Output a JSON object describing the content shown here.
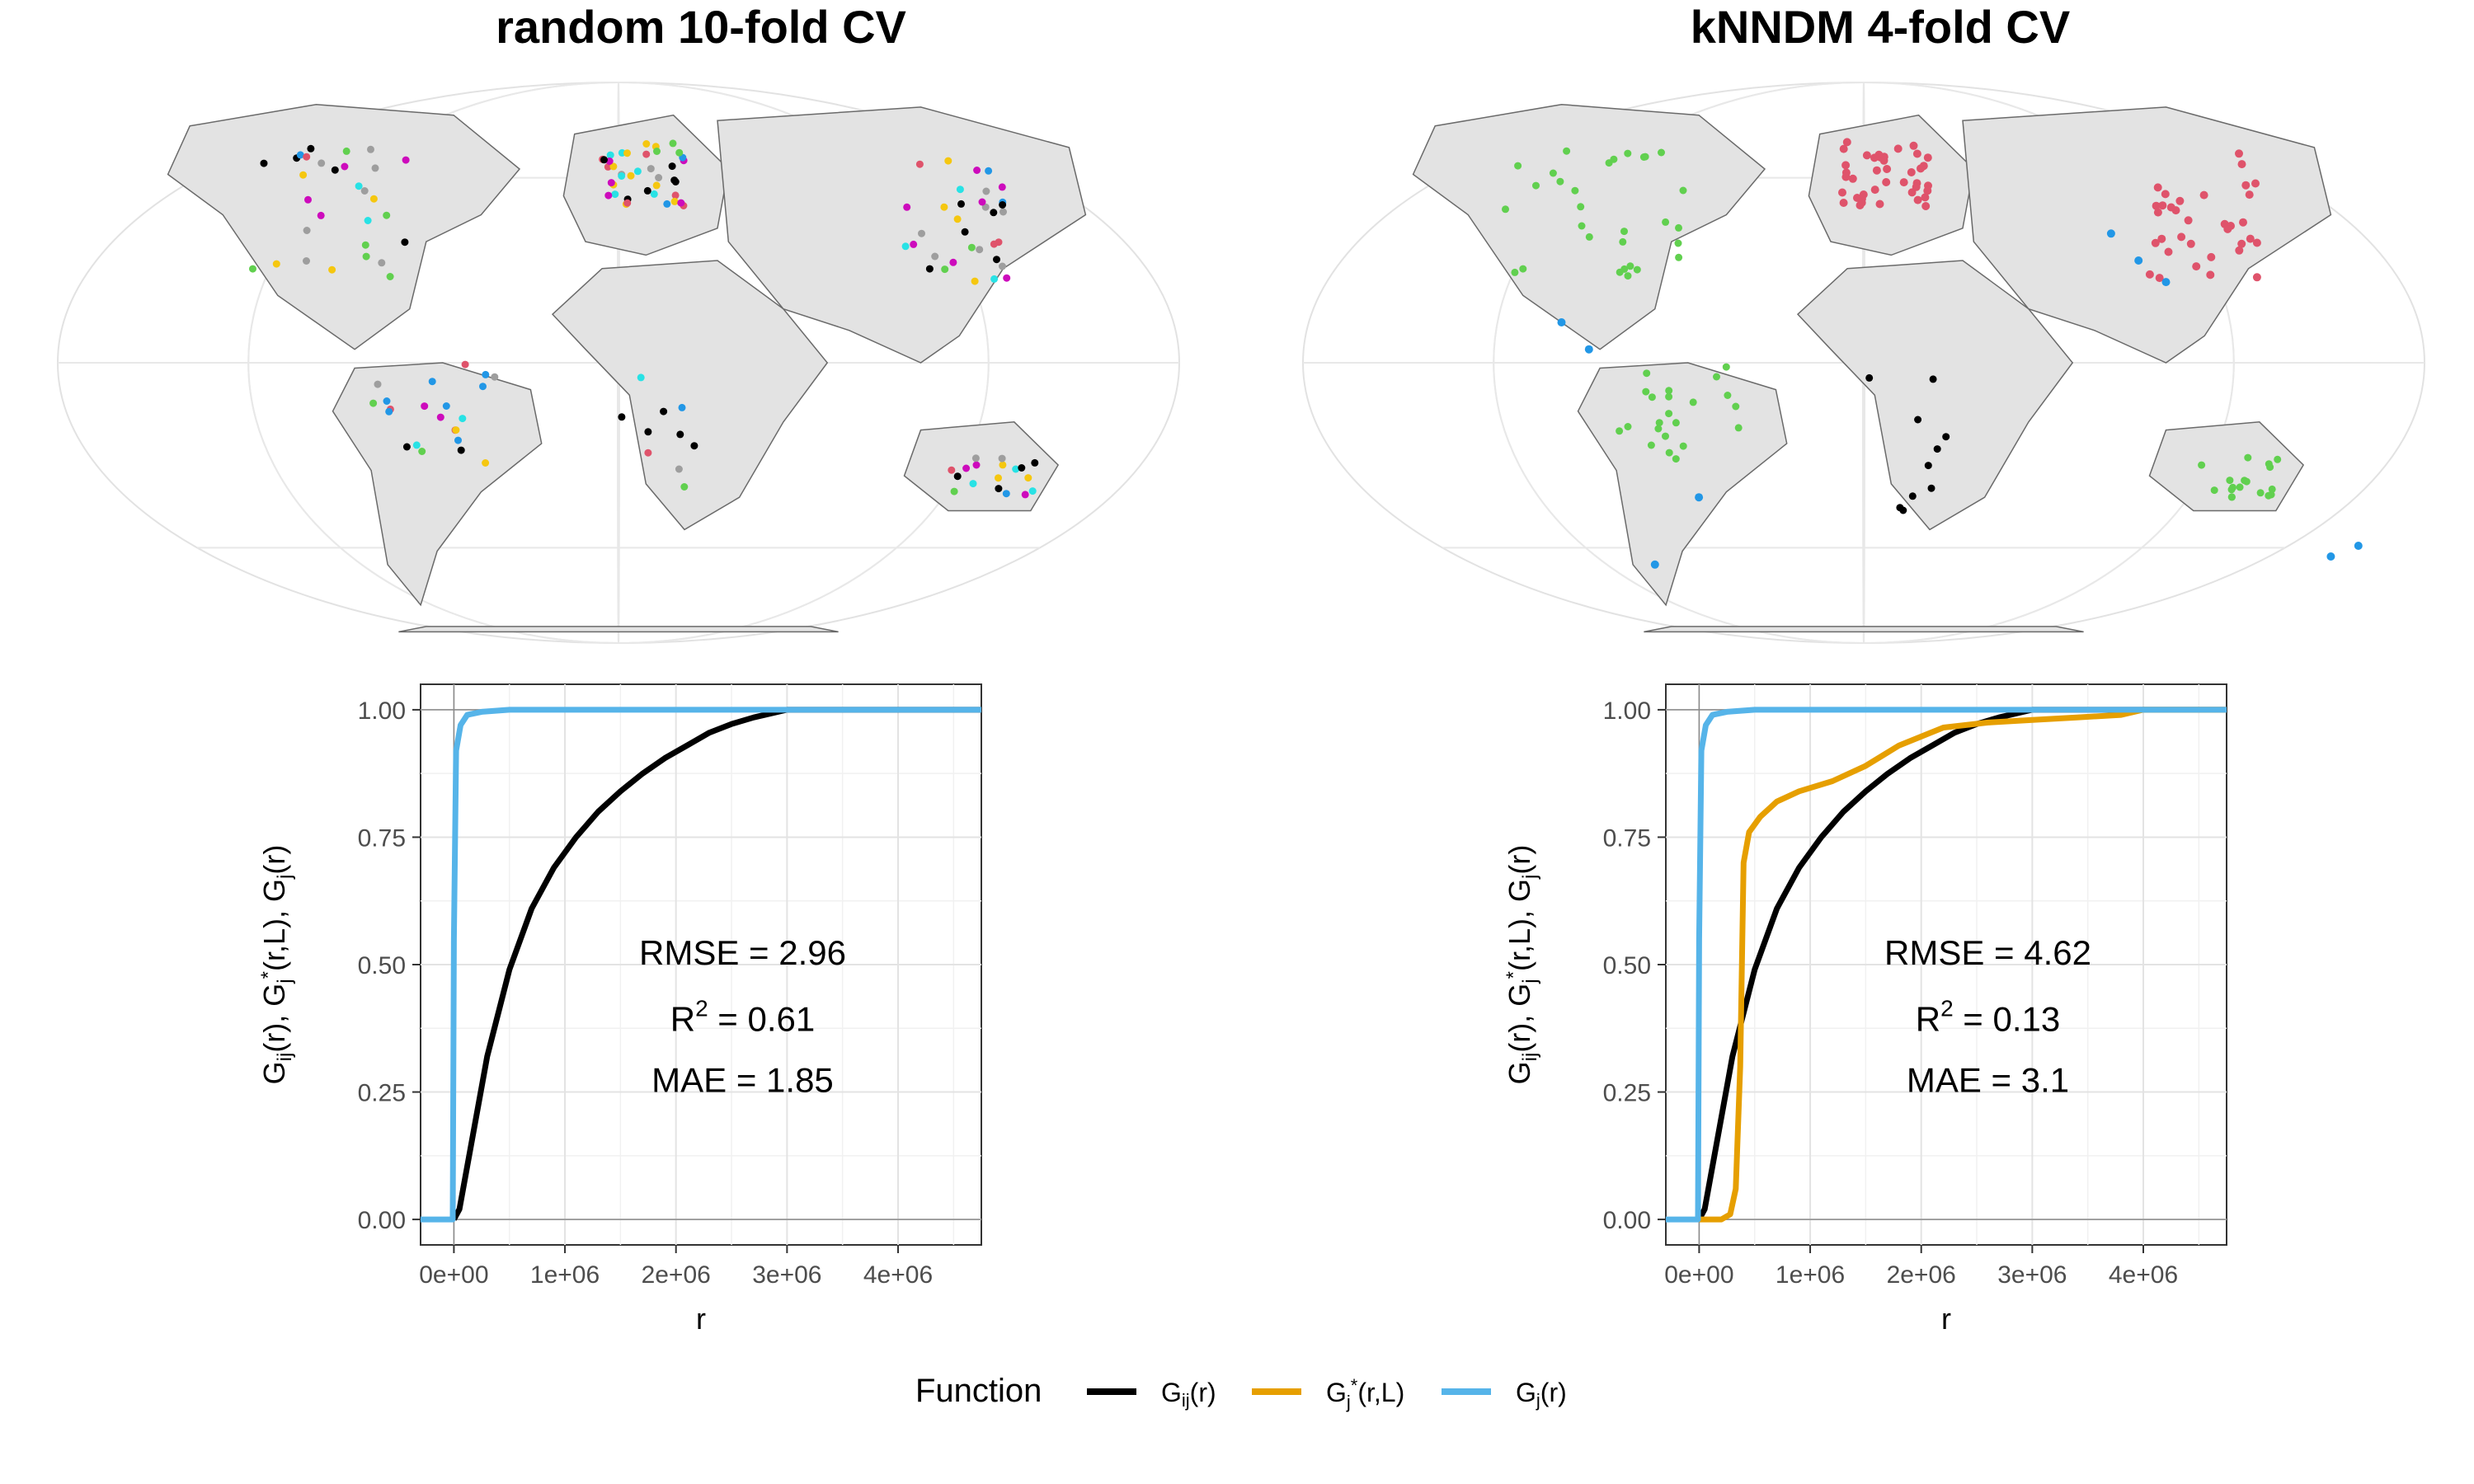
{
  "panels": [
    {
      "title": "random 10-fold CV",
      "stats": {
        "rmse": "RMSE = 2.96",
        "r2_prefix": "R",
        "r2_sup": "2",
        "r2_value": " = 0.61",
        "mae": "MAE = 1.85"
      },
      "map_colors": [
        "#000000",
        "#DF536B",
        "#61D04F",
        "#2297E6",
        "#28E2E5",
        "#CD0BBC",
        "#F5C710",
        "#9E9E9E"
      ]
    },
    {
      "title": "kNNDM 4-fold CV",
      "stats": {
        "rmse": "RMSE = 4.62",
        "r2_prefix": "R",
        "r2_sup": "2",
        "r2_value": " = 0.13",
        "mae": "MAE = 3.1"
      },
      "map_colors": [
        "#000000",
        "#DF536B",
        "#61D04F",
        "#2297E6"
      ]
    }
  ],
  "axes": {
    "xlabel": "r",
    "ylabel_parts": [
      "G",
      "ij",
      "(r), ",
      "G",
      "j",
      "*",
      "(r,L), ",
      "G",
      "j",
      "(r)"
    ],
    "x_ticks": [
      "0e+00",
      "1e+06",
      "2e+06",
      "3e+06",
      "4e+06"
    ],
    "y_ticks": [
      "0.00",
      "0.25",
      "0.50",
      "0.75",
      "1.00"
    ]
  },
  "legend": {
    "title": "Function",
    "items": [
      {
        "base": "G",
        "sub": "ij",
        "sup": "",
        "tail": "(r)",
        "color": "#000000"
      },
      {
        "base": "G",
        "sub": "j",
        "sup": "*",
        "tail": "(r,L)",
        "color": "#E69F00"
      },
      {
        "base": "G",
        "sub": "j",
        "sup": "",
        "tail": "(r)",
        "color": "#56B4E9"
      }
    ]
  },
  "chart_data": [
    {
      "type": "line",
      "title": "random 10-fold CV",
      "xlabel": "r",
      "xlim": [
        -300000,
        4750000
      ],
      "ylim": [
        -0.05,
        1.05
      ],
      "series": [
        {
          "name": "Ĝij(r)",
          "color": "#000000",
          "x": [
            0,
            50000,
            150000,
            300000,
            500000,
            700000,
            900000,
            1100000,
            1300000,
            1500000,
            1700000,
            1900000,
            2100000,
            2300000,
            2500000,
            2700000,
            2900000,
            3000000,
            4750000
          ],
          "y": [
            0,
            0.02,
            0.14,
            0.32,
            0.49,
            0.61,
            0.69,
            0.75,
            0.8,
            0.84,
            0.875,
            0.905,
            0.93,
            0.955,
            0.972,
            0.985,
            0.995,
            1,
            1
          ]
        },
        {
          "name": "Ĝj(r)",
          "color": "#56B4E9",
          "x": [
            -300000,
            -40000,
            -10000,
            0,
            20000,
            60000,
            120000,
            250000,
            500000,
            4750000
          ],
          "y": [
            0,
            0,
            0,
            0.55,
            0.92,
            0.97,
            0.99,
            0.996,
            1,
            1
          ]
        }
      ],
      "annotations": [
        "RMSE = 2.96",
        "R2 = 0.61",
        "MAE = 1.85"
      ]
    },
    {
      "type": "line",
      "title": "kNNDM 4-fold CV",
      "xlabel": "r",
      "xlim": [
        -300000,
        4750000
      ],
      "ylim": [
        -0.05,
        1.05
      ],
      "series": [
        {
          "name": "Ĝij(r)",
          "color": "#000000",
          "x": [
            0,
            50000,
            150000,
            300000,
            500000,
            700000,
            900000,
            1100000,
            1300000,
            1500000,
            1700000,
            1900000,
            2100000,
            2300000,
            2500000,
            2700000,
            2900000,
            3000000,
            4750000
          ],
          "y": [
            0,
            0.02,
            0.14,
            0.32,
            0.49,
            0.61,
            0.69,
            0.75,
            0.8,
            0.84,
            0.875,
            0.905,
            0.93,
            0.955,
            0.972,
            0.985,
            0.995,
            1,
            1
          ]
        },
        {
          "name": "Ĝj*(r,L)",
          "color": "#E69F00",
          "x": [
            0,
            200000,
            280000,
            330000,
            370000,
            400000,
            450000,
            550000,
            700000,
            900000,
            1200000,
            1500000,
            1800000,
            2200000,
            2600000,
            3000000,
            3400000,
            3800000,
            4000000,
            4750000
          ],
          "y": [
            0,
            0,
            0.01,
            0.06,
            0.3,
            0.7,
            0.76,
            0.79,
            0.82,
            0.84,
            0.86,
            0.89,
            0.93,
            0.965,
            0.975,
            0.98,
            0.985,
            0.99,
            1,
            1
          ]
        },
        {
          "name": "Ĝj(r)",
          "color": "#56B4E9",
          "x": [
            -300000,
            -40000,
            -10000,
            0,
            20000,
            60000,
            120000,
            250000,
            500000,
            4750000
          ],
          "y": [
            0,
            0,
            0,
            0.55,
            0.92,
            0.97,
            0.99,
            0.996,
            1,
            1
          ]
        }
      ],
      "annotations": [
        "RMSE = 4.62",
        "R2 = 0.13",
        "MAE = 3.1"
      ]
    }
  ]
}
